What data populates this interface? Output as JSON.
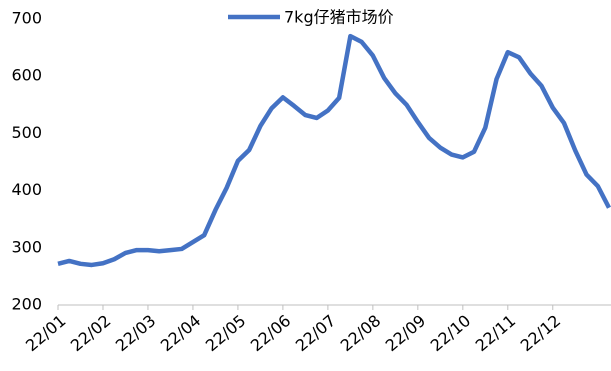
{
  "chart_data": {
    "type": "line",
    "categories": [
      "22/01",
      null,
      null,
      null,
      "22/02",
      null,
      null,
      null,
      "22/03",
      null,
      null,
      null,
      "22/04",
      null,
      null,
      null,
      "22/05",
      null,
      null,
      null,
      "22/06",
      null,
      null,
      null,
      "22/07",
      null,
      null,
      null,
      "22/08",
      null,
      null,
      null,
      "22/09",
      null,
      null,
      null,
      "22/10",
      null,
      null,
      null,
      "22/11",
      null,
      null,
      null,
      "22/12",
      null,
      null,
      null,
      null,
      null
    ],
    "series": [
      {
        "name": "7kg仔猪市场价",
        "color": "#4472c4",
        "values": [
          272,
          277,
          272,
          270,
          273,
          280,
          291,
          296,
          296,
          294,
          296,
          298,
          310,
          322,
          366,
          405,
          452,
          471,
          513,
          544,
          563,
          548,
          532,
          527,
          540,
          562,
          670,
          660,
          636,
          597,
          570,
          550,
          520,
          492,
          475,
          463,
          458,
          468,
          510,
          595,
          642,
          633,
          605,
          583,
          545,
          518,
          470,
          428,
          408,
          370
        ]
      }
    ],
    "ylim": [
      200,
      700
    ],
    "yticks": [
      200,
      300,
      400,
      500,
      600,
      700
    ],
    "legend": "top",
    "grid": false
  }
}
